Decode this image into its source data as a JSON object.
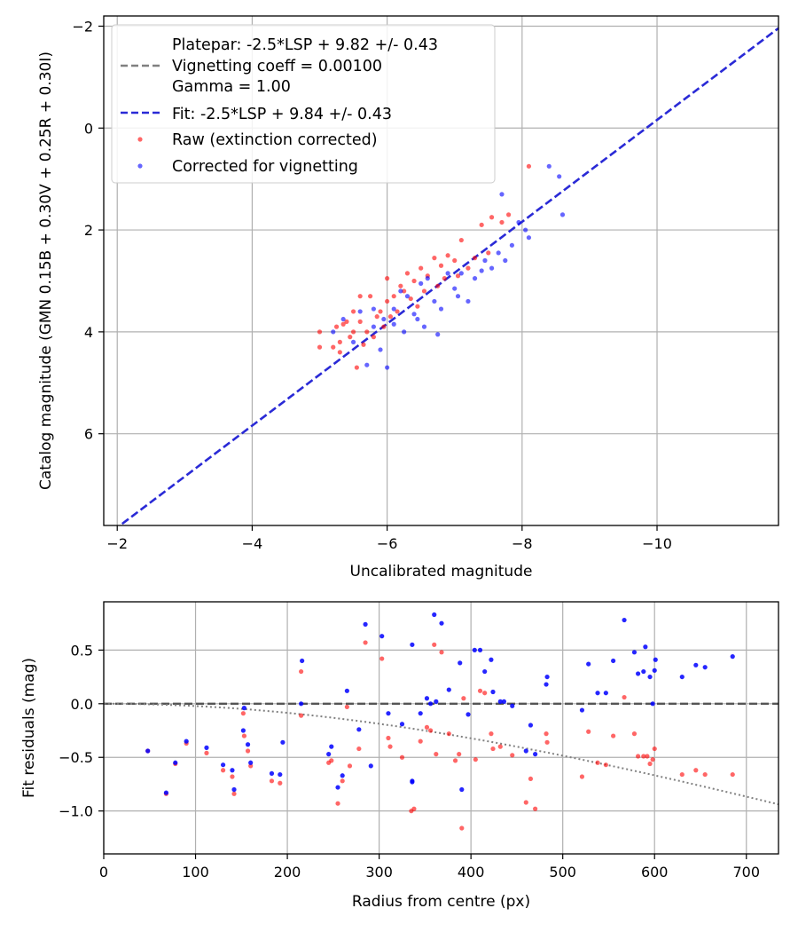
{
  "chart_data": [
    {
      "type": "scatter",
      "xlabel": "Uncalibrated magnitude",
      "ylabel": "Catalog magnitude (GMN 0.15B + 0.30V + 0.25R + 0.30I)",
      "xlim": [
        -1.8,
        -11.8
      ],
      "ylim": [
        7.8,
        -2.2
      ],
      "xticks": [
        -2,
        -4,
        -6,
        -8,
        -10
      ],
      "yticks": [
        -2,
        0,
        2,
        4,
        6
      ],
      "grid": true,
      "legend_position": "upper-left",
      "lines": [
        {
          "name": "Platepar: -2.5*LSP + 9.82 +/- 0.43",
          "slope": 1,
          "intercept": 9.82,
          "color": "#ffffff",
          "visible": false
        },
        {
          "name": "Vignetting coeff = 0.00100",
          "name2": "Gamma = 1.00",
          "slope": 1,
          "intercept": 9.82,
          "color": "#808080",
          "legend_only": true
        },
        {
          "name": "Fit: -2.5*LSP + 9.84 +/- 0.43",
          "slope": 1,
          "intercept": 9.84,
          "color": "#2a2ad6"
        }
      ],
      "series": [
        {
          "name": "Raw (extinction corrected)",
          "color": "#ff0000",
          "points": [
            [
              -5.0,
              4.3
            ],
            [
              -5.0,
              4.0
            ],
            [
              -5.2,
              4.3
            ],
            [
              -5.25,
              3.9
            ],
            [
              -5.3,
              4.4
            ],
            [
              -5.3,
              4.2
            ],
            [
              -5.4,
              3.8
            ],
            [
              -5.45,
              4.1
            ],
            [
              -5.5,
              4.0
            ],
            [
              -5.55,
              4.7
            ],
            [
              -5.5,
              3.6
            ],
            [
              -5.6,
              3.8
            ],
            [
              -5.65,
              4.25
            ],
            [
              -5.7,
              4.0
            ],
            [
              -5.75,
              3.3
            ],
            [
              -5.8,
              4.1
            ],
            [
              -5.85,
              3.7
            ],
            [
              -5.9,
              3.6
            ],
            [
              -5.95,
              3.9
            ],
            [
              -6.0,
              3.4
            ],
            [
              -6.05,
              3.7
            ],
            [
              -6.1,
              3.3
            ],
            [
              -6.15,
              3.6
            ],
            [
              -6.2,
              3.1
            ],
            [
              -6.25,
              3.2
            ],
            [
              -6.3,
              2.85
            ],
            [
              -6.35,
              3.35
            ],
            [
              -6.4,
              3.0
            ],
            [
              -6.45,
              3.5
            ],
            [
              -6.5,
              2.75
            ],
            [
              -6.55,
              3.2
            ],
            [
              -6.6,
              2.9
            ],
            [
              -6.7,
              2.55
            ],
            [
              -6.75,
              3.1
            ],
            [
              -6.8,
              2.7
            ],
            [
              -6.85,
              2.95
            ],
            [
              -6.9,
              2.5
            ],
            [
              -7.0,
              2.6
            ],
            [
              -7.05,
              2.9
            ],
            [
              -7.1,
              2.2
            ],
            [
              -7.2,
              2.75
            ],
            [
              -7.3,
              2.55
            ],
            [
              -7.4,
              1.9
            ],
            [
              -7.5,
              2.45
            ],
            [
              -7.55,
              1.75
            ],
            [
              -7.7,
              1.85
            ],
            [
              -7.8,
              1.7
            ],
            [
              -8.1,
              0.75
            ],
            [
              -5.6,
              3.3
            ],
            [
              -6.0,
              2.95
            ],
            [
              -5.35,
              3.85
            ]
          ]
        },
        {
          "name": "Corrected for vignetting",
          "color": "#0000ff",
          "points": [
            [
              -5.2,
              4.0
            ],
            [
              -5.35,
              3.75
            ],
            [
              -5.5,
              4.2
            ],
            [
              -5.6,
              3.6
            ],
            [
              -5.7,
              4.65
            ],
            [
              -5.8,
              3.9
            ],
            [
              -5.9,
              4.35
            ],
            [
              -5.95,
              3.75
            ],
            [
              -6.0,
              4.7
            ],
            [
              -6.1,
              3.55
            ],
            [
              -6.2,
              3.2
            ],
            [
              -6.25,
              4.0
            ],
            [
              -6.3,
              3.3
            ],
            [
              -6.4,
              3.65
            ],
            [
              -6.5,
              3.05
            ],
            [
              -6.55,
              3.9
            ],
            [
              -6.6,
              2.95
            ],
            [
              -6.7,
              3.4
            ],
            [
              -6.75,
              4.05
            ],
            [
              -6.8,
              3.55
            ],
            [
              -6.9,
              2.85
            ],
            [
              -7.0,
              3.15
            ],
            [
              -7.05,
              3.3
            ],
            [
              -7.1,
              2.85
            ],
            [
              -7.2,
              3.4
            ],
            [
              -7.3,
              2.95
            ],
            [
              -7.4,
              2.8
            ],
            [
              -7.45,
              2.6
            ],
            [
              -7.55,
              2.75
            ],
            [
              -7.65,
              2.45
            ],
            [
              -7.75,
              2.6
            ],
            [
              -7.85,
              2.3
            ],
            [
              -7.95,
              1.85
            ],
            [
              -8.05,
              2.0
            ],
            [
              -8.1,
              2.15
            ],
            [
              -8.4,
              0.75
            ],
            [
              -8.55,
              0.95
            ],
            [
              -8.6,
              1.7
            ],
            [
              -5.8,
              3.55
            ],
            [
              -6.45,
              3.75
            ],
            [
              -7.7,
              1.3
            ],
            [
              -6.1,
              3.85
            ]
          ]
        }
      ]
    },
    {
      "type": "scatter",
      "xlabel": "Radius from centre (px)",
      "ylabel": "Fit residuals (mag)",
      "xlim": [
        0,
        735
      ],
      "ylim": [
        -1.4,
        0.95
      ],
      "xticks": [
        0,
        100,
        200,
        300,
        400,
        500,
        600,
        700
      ],
      "yticks": [
        0.5,
        0.0,
        -0.5,
        -1.0
      ],
      "ytick_labels": [
        "0.5",
        "0.0",
        "−0.5",
        "−1.0"
      ],
      "grid": true,
      "reference_lines": [
        {
          "style": "dashed",
          "color": "#555555",
          "value": 0.0
        },
        {
          "style": "dotted",
          "color": "#808080",
          "model": "vignetting",
          "coeff": 0.001
        }
      ],
      "series": [
        {
          "name": "Raw (extinction corrected)",
          "color": "#ff0000",
          "points": [
            [
              48,
              -0.44
            ],
            [
              68,
              -0.84
            ],
            [
              78,
              -0.56
            ],
            [
              90,
              -0.37
            ],
            [
              112,
              -0.46
            ],
            [
              130,
              -0.62
            ],
            [
              140,
              -0.68
            ],
            [
              142,
              -0.84
            ],
            [
              152,
              -0.09
            ],
            [
              153,
              -0.3
            ],
            [
              157,
              -0.44
            ],
            [
              160,
              -0.58
            ],
            [
              183,
              -0.72
            ],
            [
              192,
              -0.74
            ],
            [
              215,
              -0.11
            ],
            [
              215,
              0.3
            ],
            [
              245,
              -0.55
            ],
            [
              248,
              -0.53
            ],
            [
              255,
              -0.93
            ],
            [
              260,
              -0.72
            ],
            [
              265,
              -0.03
            ],
            [
              268,
              -0.58
            ],
            [
              278,
              -0.42
            ],
            [
              285,
              0.57
            ],
            [
              303,
              0.42
            ],
            [
              310,
              -0.32
            ],
            [
              312,
              -0.4
            ],
            [
              325,
              -0.5
            ],
            [
              335,
              -1.0
            ],
            [
              338,
              -0.98
            ],
            [
              345,
              -0.35
            ],
            [
              352,
              -0.22
            ],
            [
              356,
              -0.25
            ],
            [
              360,
              0.55
            ],
            [
              362,
              -0.47
            ],
            [
              368,
              0.48
            ],
            [
              376,
              -0.28
            ],
            [
              383,
              -0.53
            ],
            [
              387,
              -0.47
            ],
            [
              390,
              -1.16
            ],
            [
              392,
              0.05
            ],
            [
              405,
              -0.52
            ],
            [
              410,
              0.12
            ],
            [
              415,
              0.1
            ],
            [
              422,
              -0.28
            ],
            [
              424,
              -0.42
            ],
            [
              432,
              -0.4
            ],
            [
              445,
              -0.48
            ],
            [
              460,
              -0.92
            ],
            [
              465,
              -0.7
            ],
            [
              470,
              -0.98
            ],
            [
              482,
              -0.28
            ],
            [
              483,
              -0.36
            ],
            [
              521,
              -0.68
            ],
            [
              528,
              -0.26
            ],
            [
              538,
              -0.55
            ],
            [
              547,
              -0.57
            ],
            [
              555,
              -0.3
            ],
            [
              567,
              0.06
            ],
            [
              578,
              -0.28
            ],
            [
              582,
              -0.49
            ],
            [
              588,
              -0.49
            ],
            [
              592,
              -0.49
            ],
            [
              595,
              -0.56
            ],
            [
              598,
              -0.52
            ],
            [
              600,
              -0.42
            ],
            [
              630,
              -0.66
            ],
            [
              645,
              -0.62
            ],
            [
              655,
              -0.66
            ],
            [
              685,
              -0.66
            ]
          ]
        },
        {
          "name": "Corrected for vignetting",
          "color": "#0000ff",
          "points": [
            [
              48,
              -0.44
            ],
            [
              68,
              -0.83
            ],
            [
              78,
              -0.55
            ],
            [
              90,
              -0.35
            ],
            [
              112,
              -0.41
            ],
            [
              130,
              -0.57
            ],
            [
              140,
              -0.62
            ],
            [
              142,
              -0.8
            ],
            [
              152,
              -0.25
            ],
            [
              153,
              -0.04
            ],
            [
              157,
              -0.38
            ],
            [
              160,
              -0.55
            ],
            [
              183,
              -0.65
            ],
            [
              192,
              -0.66
            ],
            [
              195,
              -0.36
            ],
            [
              215,
              0.0
            ],
            [
              216,
              0.4
            ],
            [
              245,
              -0.47
            ],
            [
              248,
              -0.4
            ],
            [
              255,
              -0.78
            ],
            [
              260,
              -0.67
            ],
            [
              265,
              0.12
            ],
            [
              278,
              -0.24
            ],
            [
              285,
              0.74
            ],
            [
              291,
              -0.58
            ],
            [
              303,
              0.63
            ],
            [
              310,
              -0.09
            ],
            [
              325,
              -0.19
            ],
            [
              336,
              -0.73
            ],
            [
              336,
              -0.72
            ],
            [
              336,
              0.55
            ],
            [
              345,
              -0.09
            ],
            [
              352,
              0.05
            ],
            [
              356,
              0.0
            ],
            [
              360,
              0.83
            ],
            [
              362,
              0.02
            ],
            [
              368,
              0.75
            ],
            [
              376,
              0.13
            ],
            [
              388,
              0.38
            ],
            [
              390,
              -0.8
            ],
            [
              397,
              -0.1
            ],
            [
              404,
              0.5
            ],
            [
              410,
              0.5
            ],
            [
              415,
              0.3
            ],
            [
              422,
              0.41
            ],
            [
              424,
              0.11
            ],
            [
              432,
              0.02
            ],
            [
              436,
              0.02
            ],
            [
              445,
              -0.02
            ],
            [
              460,
              -0.44
            ],
            [
              465,
              -0.2
            ],
            [
              470,
              -0.47
            ],
            [
              482,
              0.18
            ],
            [
              483,
              0.25
            ],
            [
              521,
              -0.06
            ],
            [
              528,
              0.37
            ],
            [
              538,
              0.1
            ],
            [
              547,
              0.1
            ],
            [
              555,
              0.4
            ],
            [
              567,
              0.78
            ],
            [
              578,
              0.48
            ],
            [
              582,
              0.28
            ],
            [
              588,
              0.3
            ],
            [
              590,
              0.53
            ],
            [
              595,
              0.25
            ],
            [
              598,
              0.0
            ],
            [
              600,
              0.31
            ],
            [
              601,
              0.41
            ],
            [
              630,
              0.25
            ],
            [
              645,
              0.36
            ],
            [
              655,
              0.34
            ],
            [
              685,
              0.44
            ]
          ]
        }
      ]
    }
  ]
}
